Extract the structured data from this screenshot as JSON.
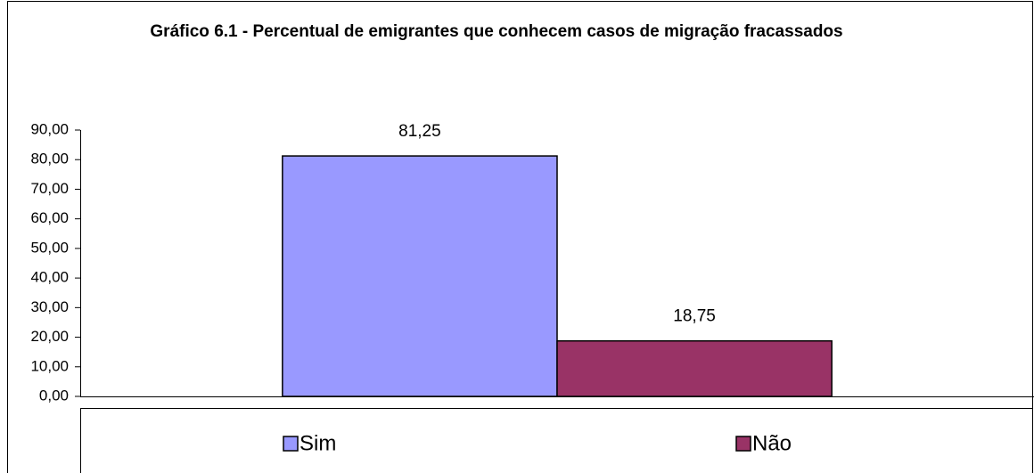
{
  "chart_data": {
    "type": "bar",
    "title": "Gráfico 6.1 - Percentual de emigrantes que conhecem casos de migração fracassados",
    "categories": [
      null
    ],
    "series": [
      {
        "name": "Sim",
        "color": "#9999ff",
        "values": [
          81.25
        ],
        "value_labels": [
          "81,25"
        ]
      },
      {
        "name": "Não",
        "color": "#993366",
        "values": [
          18.75
        ],
        "value_labels": [
          "18,75"
        ]
      }
    ],
    "ylim": [
      0,
      90
    ],
    "yticks": [
      {
        "value": 0,
        "label": "0,00"
      },
      {
        "value": 10,
        "label": "10,00"
      },
      {
        "value": 20,
        "label": "20,00"
      },
      {
        "value": 30,
        "label": "30,00"
      },
      {
        "value": 40,
        "label": "40,00"
      },
      {
        "value": 50,
        "label": "50,00"
      },
      {
        "value": 60,
        "label": "60,00"
      },
      {
        "value": 70,
        "label": "70,00"
      },
      {
        "value": 80,
        "label": "80,00"
      },
      {
        "value": 90,
        "label": "90,00"
      }
    ],
    "grid": false,
    "legend": "bottom"
  }
}
